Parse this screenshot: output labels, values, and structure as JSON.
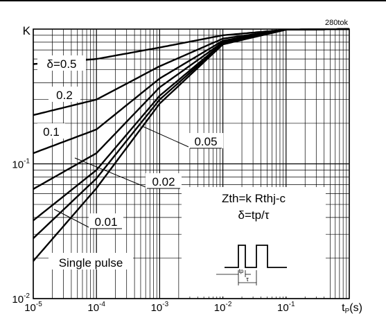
{
  "chart_data": {
    "type": "line",
    "figure_id": "280tok",
    "ylabel": "K",
    "xlabel_main": "t",
    "xlabel_sub": "P",
    "xlabel_unit": "(s)",
    "x_scale": "log",
    "y_scale": "log",
    "xlim": [
      1e-05,
      1
    ],
    "ylim": [
      0.01,
      1
    ],
    "x_ticks": [
      {
        "value": 1e-05,
        "base": "10",
        "exp": "-5"
      },
      {
        "value": 0.0001,
        "base": "10",
        "exp": "-4"
      },
      {
        "value": 0.001,
        "base": "10",
        "exp": "-3"
      },
      {
        "value": 0.01,
        "base": "10",
        "exp": "-2"
      },
      {
        "value": 0.1,
        "base": "10",
        "exp": "-1"
      }
    ],
    "y_ticks": [
      {
        "value": 0.01,
        "base": "10",
        "exp": "-2"
      },
      {
        "value": 0.1,
        "base": "10",
        "exp": "-1"
      }
    ],
    "grid": true,
    "series": [
      {
        "name": "δ=0.5",
        "x": [
          1e-05,
          0.0001,
          0.001,
          0.01,
          0.1,
          1
        ],
        "y": [
          0.55,
          0.6,
          0.73,
          0.9,
          0.99,
          1.0
        ]
      },
      {
        "name": "0.2",
        "x": [
          1e-05,
          0.0001,
          0.001,
          0.01,
          0.1,
          1
        ],
        "y": [
          0.23,
          0.3,
          0.53,
          0.85,
          0.99,
          1.0
        ]
      },
      {
        "name": "0.1",
        "x": [
          1e-05,
          0.0001,
          0.001,
          0.01,
          0.1,
          1
        ],
        "y": [
          0.12,
          0.18,
          0.43,
          0.82,
          0.99,
          1.0
        ]
      },
      {
        "name": "0.05",
        "x": [
          1e-05,
          0.0001,
          0.001,
          0.01,
          0.1,
          1
        ],
        "y": [
          0.065,
          0.12,
          0.37,
          0.8,
          0.99,
          1.0
        ]
      },
      {
        "name": "0.02",
        "x": [
          1e-05,
          0.0001,
          0.001,
          0.01,
          0.1,
          1
        ],
        "y": [
          0.038,
          0.09,
          0.32,
          0.79,
          0.99,
          1.0
        ]
      },
      {
        "name": "0.01",
        "x": [
          1e-05,
          0.0001,
          0.001,
          0.01,
          0.1,
          1
        ],
        "y": [
          0.028,
          0.078,
          0.3,
          0.78,
          0.99,
          1.0
        ]
      },
      {
        "name": "Single pulse",
        "x": [
          1e-05,
          0.0001,
          0.001,
          0.01,
          0.1,
          1
        ],
        "y": [
          0.019,
          0.066,
          0.28,
          0.77,
          0.99,
          1.0
        ]
      }
    ],
    "curve_labels": [
      {
        "text": "δ=0.5",
        "series": "δ=0.5"
      },
      {
        "text": "0.2",
        "series": "0.2"
      },
      {
        "text": "0.1",
        "series": "0.1"
      },
      {
        "text": "0.05",
        "series": "0.05"
      },
      {
        "text": "0.02",
        "series": "0.02"
      },
      {
        "text": "0.01",
        "series": "0.01"
      },
      {
        "text": "Single pulse",
        "series": "Single pulse"
      }
    ],
    "annotation": {
      "formula_1": "Zth=k Rthj-c",
      "formula_2": "δ=tp/τ",
      "pulse_label_tp": "tp",
      "pulse_label_tau": "τ"
    }
  }
}
